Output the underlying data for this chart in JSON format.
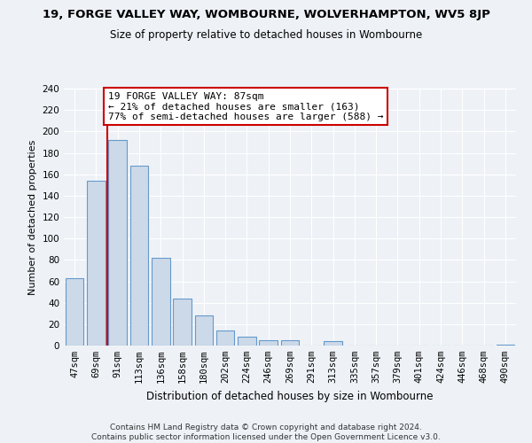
{
  "title": "19, FORGE VALLEY WAY, WOMBOURNE, WOLVERHAMPTON, WV5 8JP",
  "subtitle": "Size of property relative to detached houses in Wombourne",
  "xlabel": "Distribution of detached houses by size in Wombourne",
  "ylabel": "Number of detached properties",
  "bar_labels": [
    "47sqm",
    "69sqm",
    "91sqm",
    "113sqm",
    "136sqm",
    "158sqm",
    "180sqm",
    "202sqm",
    "224sqm",
    "246sqm",
    "269sqm",
    "291sqm",
    "313sqm",
    "335sqm",
    "357sqm",
    "379sqm",
    "401sqm",
    "424sqm",
    "446sqm",
    "468sqm",
    "490sqm"
  ],
  "bar_values": [
    63,
    154,
    192,
    168,
    82,
    44,
    28,
    14,
    8,
    5,
    5,
    0,
    4,
    0,
    0,
    0,
    0,
    0,
    0,
    0,
    1
  ],
  "bar_color": "#ccd9e8",
  "bar_edge_color": "#6699cc",
  "vline_color": "#cc0000",
  "annotation_line1": "19 FORGE VALLEY WAY: 87sqm",
  "annotation_line2": "← 21% of detached houses are smaller (163)",
  "annotation_line3": "77% of semi-detached houses are larger (588) →",
  "annotation_box_color": "#ffffff",
  "annotation_box_edge": "#cc0000",
  "ylim": [
    0,
    240
  ],
  "yticks": [
    0,
    20,
    40,
    60,
    80,
    100,
    120,
    140,
    160,
    180,
    200,
    220,
    240
  ],
  "footer_line1": "Contains HM Land Registry data © Crown copyright and database right 2024.",
  "footer_line2": "Contains public sector information licensed under the Open Government Licence v3.0.",
  "bg_color": "#eef2f7",
  "grid_color": "#ffffff",
  "title_fontsize": 9.5,
  "subtitle_fontsize": 8.5,
  "xlabel_fontsize": 8.5,
  "ylabel_fontsize": 8,
  "tick_fontsize": 7.5,
  "annotation_fontsize": 8,
  "footer_fontsize": 6.5
}
